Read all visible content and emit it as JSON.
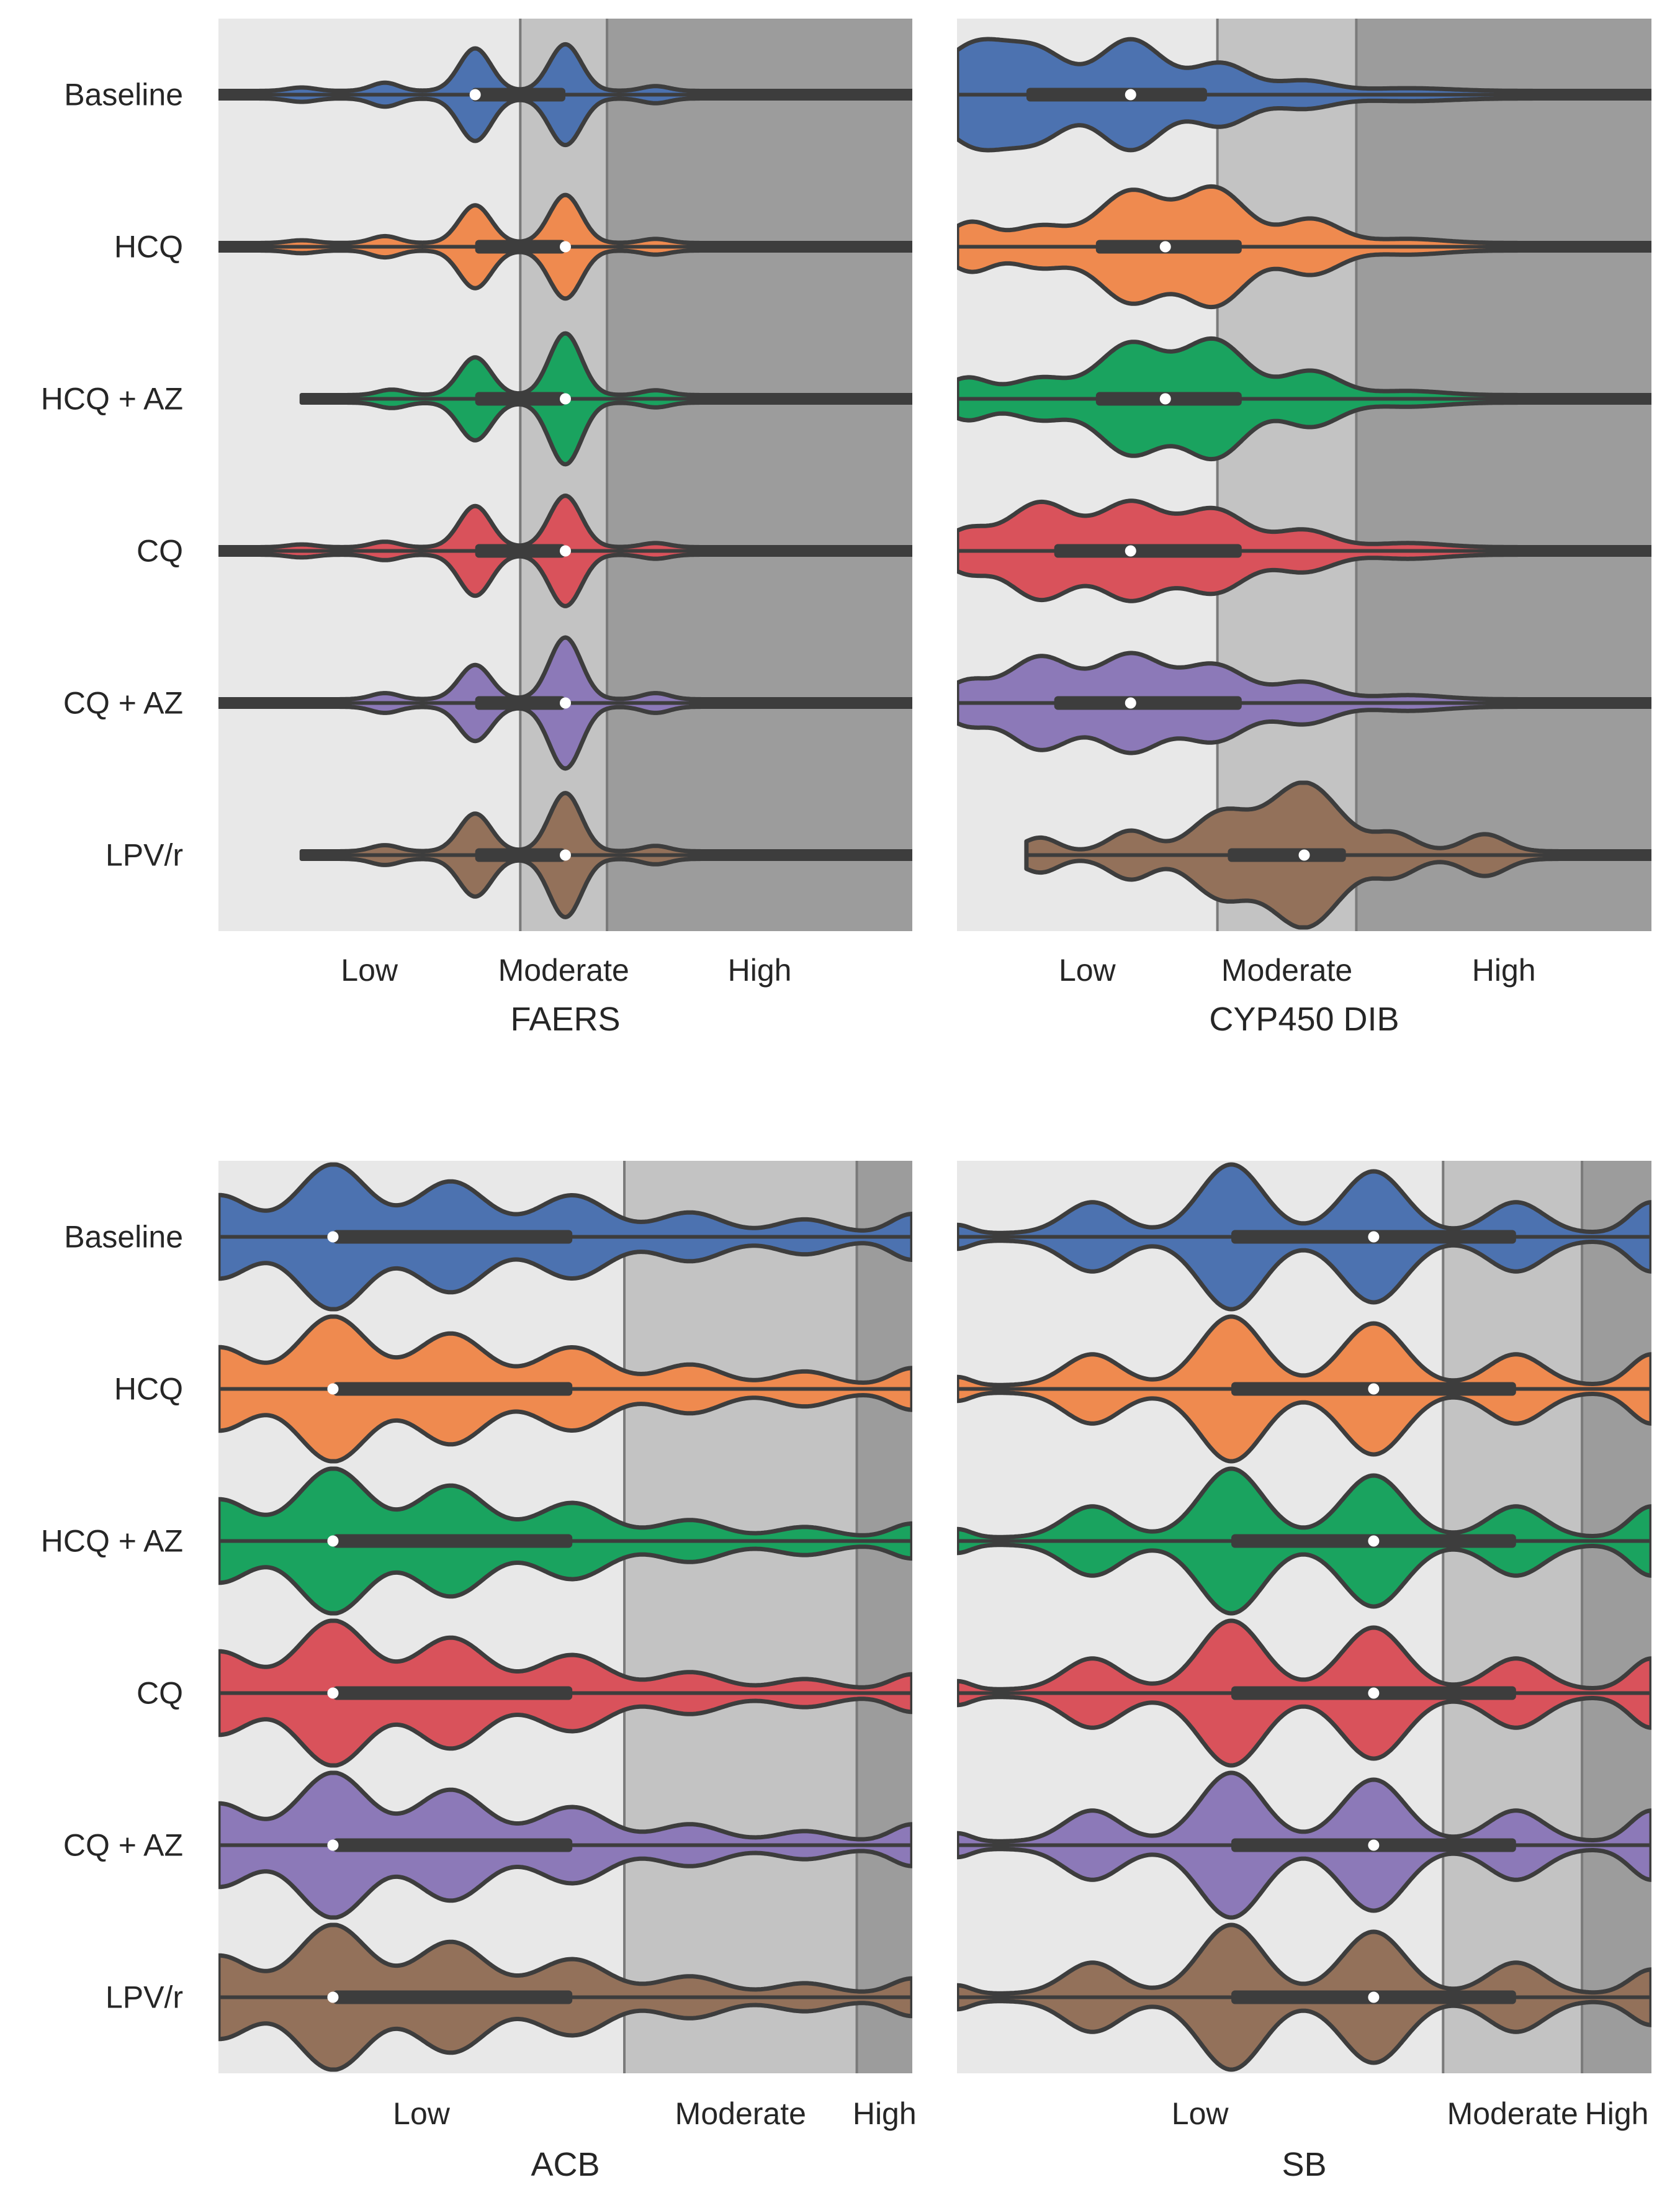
{
  "palette": [
    "#4c72b0",
    "#ef8a4f",
    "#1aa35f",
    "#d9525b",
    "#8c79b8",
    "#93715a"
  ],
  "zone_colors": {
    "low": "#e8e8e8",
    "moderate": "#c3c3c3",
    "high": "#9c9c9c"
  },
  "chart_data": [
    {
      "type": "violin",
      "title": "FAERS",
      "xlim": [
        0,
        100
      ],
      "zones": [
        {
          "label": "Low",
          "from": 0,
          "to": 43.5
        },
        {
          "label": "Moderate",
          "from": 43.5,
          "to": 56
        },
        {
          "label": "High",
          "from": 56,
          "to": 100
        }
      ],
      "categories": [
        "Baseline",
        "HCQ",
        "HCQ + AZ",
        "CQ",
        "CQ + AZ",
        "LPV/r"
      ],
      "series": [
        {
          "name": "Baseline",
          "min": 0,
          "max": 100,
          "q1": 36.5,
          "median": 37,
          "q3": 50,
          "modes": [
            [
              12,
              0.05,
              2
            ],
            [
              24,
              0.12,
              2
            ],
            [
              37,
              0.62,
              2.3
            ],
            [
              50,
              0.68,
              2.3
            ],
            [
              63,
              0.07,
              2
            ]
          ]
        },
        {
          "name": "HCQ",
          "min": 0,
          "max": 100,
          "q1": 37,
          "median": 50,
          "q3": 50,
          "modes": [
            [
              12,
              0.04,
              2
            ],
            [
              24,
              0.1,
              2
            ],
            [
              37,
              0.55,
              2.3
            ],
            [
              50,
              0.7,
              2.3
            ],
            [
              63,
              0.06,
              2
            ]
          ]
        },
        {
          "name": "HCQ + AZ",
          "min": 12,
          "max": 100,
          "q1": 37,
          "median": 50,
          "q3": 50,
          "modes": [
            [
              25,
              0.08,
              2
            ],
            [
              37,
              0.55,
              2.3
            ],
            [
              50,
              0.9,
              2.3
            ],
            [
              63,
              0.07,
              2
            ]
          ]
        },
        {
          "name": "CQ",
          "min": 0,
          "max": 100,
          "q1": 37,
          "median": 50,
          "q3": 50,
          "modes": [
            [
              12,
              0.04,
              2
            ],
            [
              24,
              0.08,
              2
            ],
            [
              37,
              0.6,
              2.3
            ],
            [
              50,
              0.75,
              2.3
            ],
            [
              63,
              0.06,
              2
            ]
          ]
        },
        {
          "name": "CQ + AZ",
          "min": 0,
          "max": 100,
          "q1": 37,
          "median": 50,
          "q3": 50,
          "modes": [
            [
              24,
              0.09,
              2
            ],
            [
              37,
              0.5,
              2.3
            ],
            [
              50,
              0.9,
              2.3
            ],
            [
              63,
              0.09,
              2
            ]
          ]
        },
        {
          "name": "LPV/r",
          "min": 12,
          "max": 100,
          "q1": 37,
          "median": 50,
          "q3": 50,
          "modes": [
            [
              24,
              0.09,
              2
            ],
            [
              37,
              0.55,
              2.3
            ],
            [
              50,
              0.85,
              2.3
            ],
            [
              63,
              0.08,
              2
            ]
          ]
        }
      ]
    },
    {
      "type": "violin",
      "title": "CYP450 DIB",
      "xlim": [
        0,
        100
      ],
      "zones": [
        {
          "label": "Low",
          "from": 0,
          "to": 37.5
        },
        {
          "label": "Moderate",
          "from": 37.5,
          "to": 57.5
        },
        {
          "label": "High",
          "from": 57.5,
          "to": 100
        }
      ],
      "categories": [
        "Baseline",
        "HCQ",
        "HCQ + AZ",
        "CQ",
        "CQ + AZ",
        "LPV/r"
      ],
      "series": [
        {
          "name": "Baseline",
          "min": 0,
          "max": 100,
          "q1": 10,
          "median": 25,
          "q3": 36,
          "modes": [
            [
              3,
              0.7,
              5
            ],
            [
              12,
              0.5,
              4
            ],
            [
              25,
              0.75,
              4.5
            ],
            [
              38,
              0.4,
              4
            ],
            [
              50,
              0.15,
              4
            ],
            [
              65,
              0.04,
              6
            ]
          ]
        },
        {
          "name": "HCQ",
          "min": 0,
          "max": 100,
          "q1": 20,
          "median": 30,
          "q3": 41,
          "modes": [
            [
              2,
              0.3,
              3
            ],
            [
              12,
              0.25,
              4
            ],
            [
              25,
              0.75,
              4.5
            ],
            [
              37,
              0.8,
              4.5
            ],
            [
              51,
              0.35,
              4
            ],
            [
              65,
              0.06,
              5
            ]
          ]
        },
        {
          "name": "HCQ + AZ",
          "min": 0,
          "max": 100,
          "q1": 20,
          "median": 30,
          "q3": 41,
          "modes": [
            [
              1.5,
              0.25,
              3
            ],
            [
              12,
              0.25,
              4
            ],
            [
              25,
              0.75,
              4.5
            ],
            [
              37,
              0.8,
              4.5
            ],
            [
              51,
              0.35,
              4
            ],
            [
              65,
              0.06,
              5
            ]
          ]
        },
        {
          "name": "CQ",
          "min": 0,
          "max": 100,
          "q1": 14,
          "median": 25,
          "q3": 41,
          "modes": [
            [
              1.5,
              0.25,
              3
            ],
            [
              12,
              0.65,
              4.5
            ],
            [
              25,
              0.65,
              4.5
            ],
            [
              37,
              0.55,
              4.5
            ],
            [
              50,
              0.25,
              4
            ],
            [
              65,
              0.06,
              5
            ]
          ]
        },
        {
          "name": "CQ + AZ",
          "min": 0,
          "max": 100,
          "q1": 14,
          "median": 25,
          "q3": 41,
          "modes": [
            [
              1.5,
              0.25,
              3
            ],
            [
              12,
              0.62,
              4.5
            ],
            [
              25,
              0.65,
              4.5
            ],
            [
              37,
              0.5,
              4.5
            ],
            [
              50,
              0.25,
              4
            ],
            [
              65,
              0.06,
              5
            ]
          ]
        },
        {
          "name": "LPV/r",
          "min": 10,
          "max": 100,
          "q1": 39,
          "median": 50,
          "q3": 56,
          "modes": [
            [
              12,
              0.2,
              2.5
            ],
            [
              25,
              0.3,
              3
            ],
            [
              38,
              0.55,
              4
            ],
            [
              50,
              1.0,
              5
            ],
            [
              63,
              0.25,
              3
            ],
            [
              76,
              0.25,
              3
            ]
          ]
        }
      ]
    },
    {
      "type": "violin",
      "title": "ACB",
      "xlim": [
        0,
        100
      ],
      "zones": [
        {
          "label": "Low",
          "from": 0,
          "to": 58.5
        },
        {
          "label": "Moderate",
          "from": 58.5,
          "to": 92
        },
        {
          "label": "High",
          "from": 92,
          "to": 100
        }
      ],
      "categories": [
        "Baseline",
        "HCQ",
        "HCQ + AZ",
        "CQ",
        "CQ + AZ",
        "LPV/r"
      ],
      "series": [
        {
          "name": "Baseline",
          "min": 0,
          "max": 100,
          "q1": 16.5,
          "median": 16.5,
          "q3": 51,
          "modes": [
            [
              0,
              0.55,
              4.5
            ],
            [
              16.5,
              1.0,
              5
            ],
            [
              33.5,
              0.75,
              5
            ],
            [
              51,
              0.55,
              5
            ],
            [
              68,
              0.3,
              4.5
            ],
            [
              84.5,
              0.2,
              4
            ],
            [
              100,
              0.28,
              3
            ]
          ]
        },
        {
          "name": "HCQ",
          "min": 0,
          "max": 100,
          "q1": 16.5,
          "median": 16.5,
          "q3": 51,
          "modes": [
            [
              0,
              0.55,
              4.5
            ],
            [
              16.5,
              1.0,
              5
            ],
            [
              33.5,
              0.75,
              5
            ],
            [
              51,
              0.55,
              5
            ],
            [
              68,
              0.3,
              4.5
            ],
            [
              84.5,
              0.2,
              4
            ],
            [
              100,
              0.25,
              3
            ]
          ]
        },
        {
          "name": "HCQ + AZ",
          "min": 0,
          "max": 100,
          "q1": 16.5,
          "median": 16.5,
          "q3": 51,
          "modes": [
            [
              0,
              0.55,
              4.5
            ],
            [
              16.5,
              1.0,
              5
            ],
            [
              33.5,
              0.75,
              5
            ],
            [
              51,
              0.5,
              5
            ],
            [
              68,
              0.25,
              4.5
            ],
            [
              84.5,
              0.15,
              4
            ],
            [
              100,
              0.2,
              3
            ]
          ]
        },
        {
          "name": "CQ",
          "min": 0,
          "max": 100,
          "q1": 16.5,
          "median": 16.5,
          "q3": 51,
          "modes": [
            [
              0,
              0.55,
              4.5
            ],
            [
              16.5,
              1.0,
              5
            ],
            [
              33.5,
              0.75,
              5
            ],
            [
              51,
              0.5,
              5
            ],
            [
              68,
              0.25,
              4.5
            ],
            [
              84.5,
              0.15,
              4
            ],
            [
              100,
              0.22,
              3
            ]
          ]
        },
        {
          "name": "CQ + AZ",
          "min": 0,
          "max": 100,
          "q1": 16.5,
          "median": 16.5,
          "q3": 51,
          "modes": [
            [
              0,
              0.55,
              4.5
            ],
            [
              16.5,
              1.0,
              5
            ],
            [
              33.5,
              0.75,
              5
            ],
            [
              51,
              0.5,
              5
            ],
            [
              68,
              0.25,
              4.5
            ],
            [
              84.5,
              0.15,
              4
            ],
            [
              100,
              0.25,
              3
            ]
          ]
        },
        {
          "name": "LPV/r",
          "min": 0,
          "max": 100,
          "q1": 16.5,
          "median": 16.5,
          "q3": 51,
          "modes": [
            [
              0,
              0.55,
              4.5
            ],
            [
              16.5,
              1.0,
              5
            ],
            [
              33.5,
              0.75,
              5
            ],
            [
              51,
              0.5,
              5
            ],
            [
              68,
              0.25,
              4.5
            ],
            [
              84.5,
              0.15,
              4
            ],
            [
              100,
              0.22,
              3
            ]
          ]
        }
      ]
    },
    {
      "type": "violin",
      "title": "SB",
      "xlim": [
        0,
        100
      ],
      "zones": [
        {
          "label": "Low",
          "from": 0,
          "to": 70
        },
        {
          "label": "Moderate",
          "from": 70,
          "to": 90
        },
        {
          "label": "High",
          "from": 90,
          "to": 100
        }
      ],
      "categories": [
        "Baseline",
        "HCQ",
        "HCQ + AZ",
        "CQ",
        "CQ + AZ",
        "LPV/r"
      ],
      "series": [
        {
          "name": "Baseline",
          "min": 0,
          "max": 100,
          "q1": 39.5,
          "median": 60,
          "q3": 80.5,
          "modes": [
            [
              0,
              0.12,
              2
            ],
            [
              19.5,
              0.45,
              4
            ],
            [
              39.5,
              1.0,
              4.5
            ],
            [
              60,
              0.9,
              4.5
            ],
            [
              80.5,
              0.45,
              4
            ],
            [
              100,
              0.45,
              3
            ]
          ]
        },
        {
          "name": "HCQ",
          "min": 0,
          "max": 100,
          "q1": 39.5,
          "median": 60,
          "q3": 80.5,
          "modes": [
            [
              0,
              0.12,
              2
            ],
            [
              19.5,
              0.45,
              4
            ],
            [
              39.5,
              1.0,
              4.5
            ],
            [
              60,
              0.9,
              4.5
            ],
            [
              80.5,
              0.45,
              4
            ],
            [
              100,
              0.45,
              3
            ]
          ]
        },
        {
          "name": "HCQ + AZ",
          "min": 0,
          "max": 100,
          "q1": 39.5,
          "median": 60,
          "q3": 80.5,
          "modes": [
            [
              0,
              0.12,
              2
            ],
            [
              19.5,
              0.45,
              4
            ],
            [
              39.5,
              1.0,
              4.5
            ],
            [
              60,
              0.9,
              4.5
            ],
            [
              80.5,
              0.45,
              4
            ],
            [
              100,
              0.45,
              3
            ]
          ]
        },
        {
          "name": "CQ",
          "min": 0,
          "max": 100,
          "q1": 39.5,
          "median": 60,
          "q3": 80.5,
          "modes": [
            [
              0,
              0.12,
              2
            ],
            [
              19.5,
              0.45,
              4
            ],
            [
              39.5,
              1.0,
              4.5
            ],
            [
              60,
              0.9,
              4.5
            ],
            [
              80.5,
              0.45,
              4
            ],
            [
              100,
              0.45,
              3
            ]
          ]
        },
        {
          "name": "CQ + AZ",
          "min": 0,
          "max": 100,
          "q1": 39.5,
          "median": 60,
          "q3": 80.5,
          "modes": [
            [
              0,
              0.12,
              2
            ],
            [
              19.5,
              0.45,
              4
            ],
            [
              39.5,
              1.0,
              4.5
            ],
            [
              60,
              0.9,
              4.5
            ],
            [
              80.5,
              0.45,
              4
            ],
            [
              100,
              0.45,
              3
            ]
          ]
        },
        {
          "name": "LPV/r",
          "min": 0,
          "max": 100,
          "q1": 39.5,
          "median": 60,
          "q3": 80.5,
          "modes": [
            [
              0,
              0.12,
              2
            ],
            [
              19.5,
              0.45,
              4
            ],
            [
              39.5,
              1.0,
              4.5
            ],
            [
              60,
              0.9,
              4.5
            ],
            [
              80.5,
              0.45,
              4
            ],
            [
              100,
              0.35,
              3
            ]
          ]
        }
      ]
    }
  ]
}
